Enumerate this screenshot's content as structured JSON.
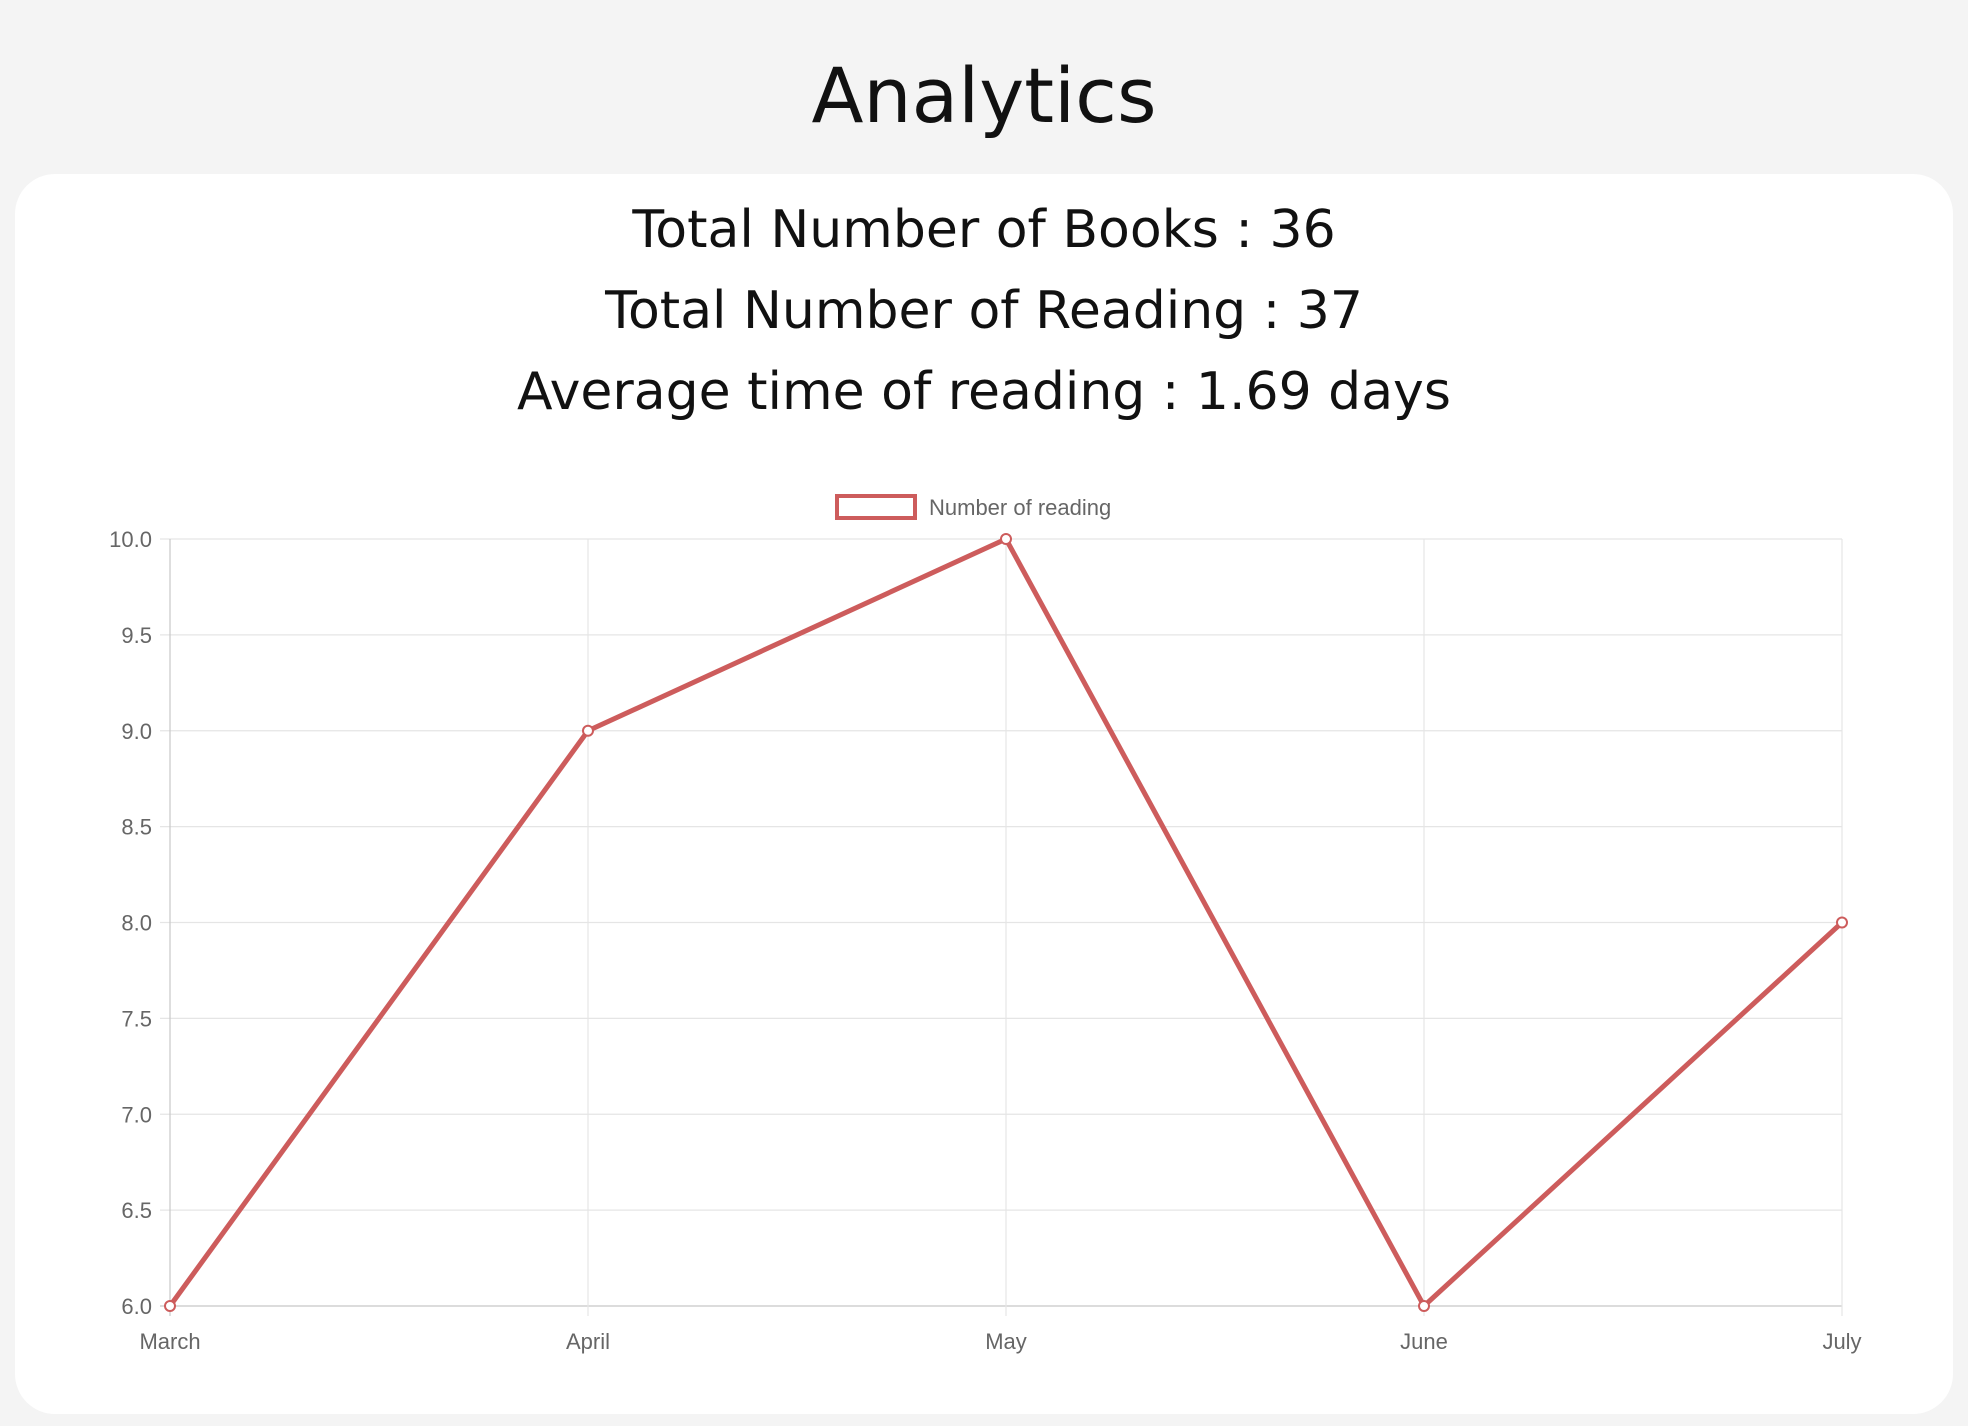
{
  "page": {
    "title": "Analytics"
  },
  "stats": [
    {
      "label": "Total Number of Books",
      "value": "36"
    },
    {
      "label": "Total Number of Reading",
      "value": "37"
    },
    {
      "label": "Average time of reading",
      "value": "1.69 days"
    }
  ],
  "colors": {
    "series": "#cd5c5c",
    "grid": "#e5e5e5",
    "axis": "#c8c8c8",
    "tick_text": "#666666"
  },
  "chart_data": {
    "type": "line",
    "categories": [
      "March",
      "April",
      "May",
      "June",
      "July"
    ],
    "series": [
      {
        "name": "Number of reading",
        "values": [
          6,
          9,
          10,
          6,
          8
        ]
      }
    ],
    "ylim": [
      6.0,
      10.0
    ],
    "yticks": [
      "10.0",
      "9.5",
      "9.0",
      "8.5",
      "8.0",
      "7.5",
      "7.0",
      "6.5",
      "6.0"
    ],
    "grid": true,
    "legend": "top-center"
  }
}
